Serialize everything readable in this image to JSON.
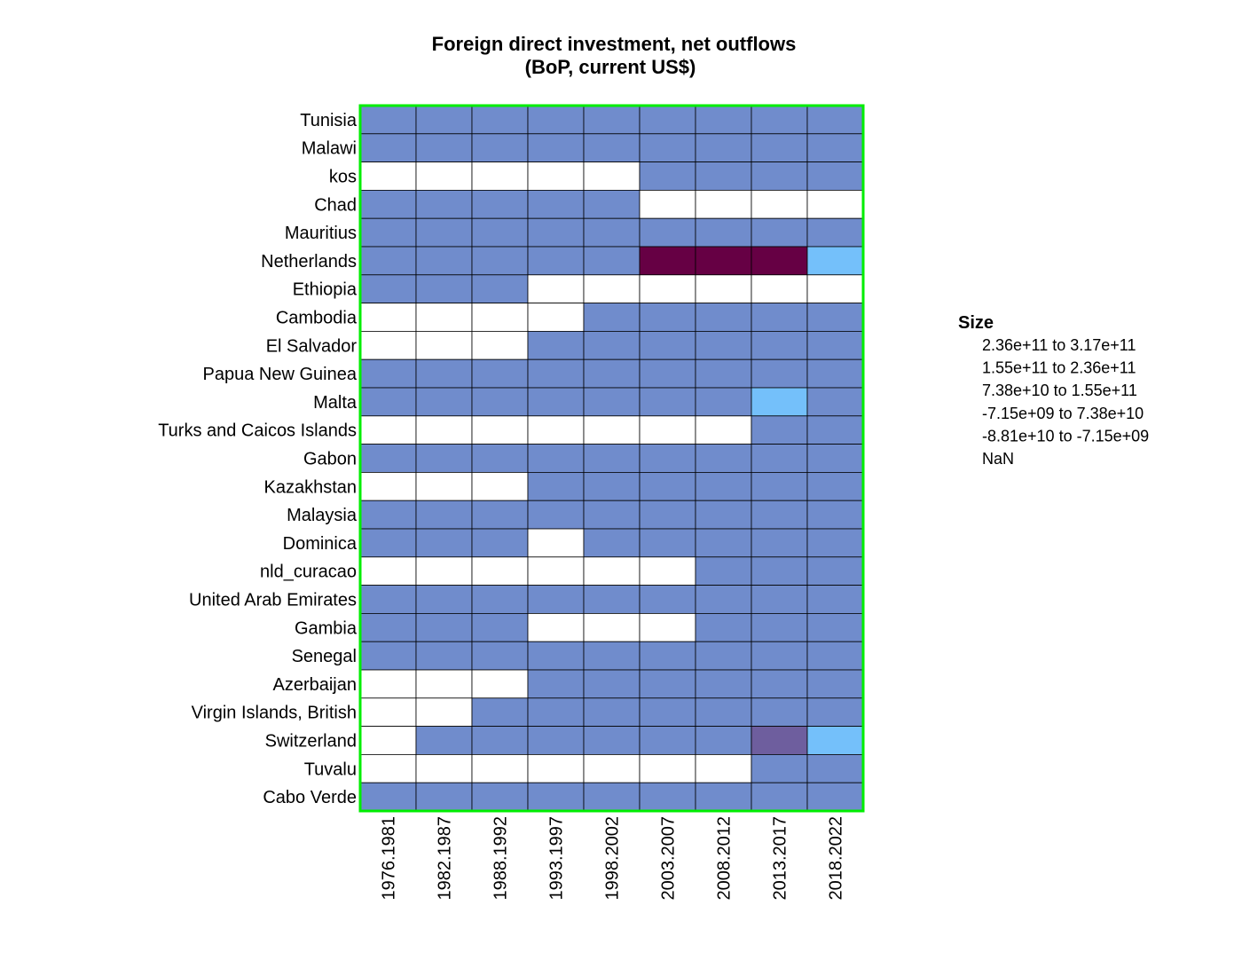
{
  "chart_data": {
    "type": "heatmap",
    "title": [
      "Foreign direct investment, net outflows",
      "(BoP, current US$)"
    ],
    "columns": [
      "1976.1981",
      "1982.1987",
      "1988.1992",
      "1993.1997",
      "1998.2002",
      "2003.2007",
      "2008.2012",
      "2013.2017",
      "2018.2022"
    ],
    "rows": [
      "Tunisia",
      "Malawi",
      "kos",
      "Chad",
      "Mauritius",
      "Netherlands",
      "Ethiopia",
      "Cambodia",
      "El Salvador",
      "Papua New Guinea",
      "Malta",
      "Turks and Caicos Islands",
      "Gabon",
      "Kazakhstan",
      "Malaysia",
      "Dominica",
      "nld_curacao",
      "United Arab Emirates",
      "Gambia",
      "Senegal",
      "Azerbaijan",
      "Virgin Islands, British",
      "Switzerland",
      "Tuvalu",
      "Cabo Verde"
    ],
    "legend": {
      "title": "Size",
      "placement": "right",
      "bins": [
        {
          "from": "2.36e+11",
          "to": "3.17e+11",
          "color": "#660044"
        },
        {
          "from": "1.55e+11",
          "to": "2.36e+11",
          "color": "#6e5e9e"
        },
        {
          "from": "7.38e+10",
          "to": "1.55e+11",
          "color": "#74c0fa"
        },
        {
          "from": "-7.15e+09",
          "to": "7.38e+10",
          "color": "#708ccc"
        },
        {
          "from": "-8.81e+10",
          "to": "-7.15e+09",
          "color": "#b0d0f0"
        },
        {
          "label": "NaN",
          "color": "#ffffff"
        }
      ]
    },
    "bin_index": [
      [
        3,
        3,
        3,
        3,
        3,
        3,
        3,
        3,
        3
      ],
      [
        3,
        3,
        3,
        3,
        3,
        3,
        3,
        3,
        3
      ],
      [
        5,
        5,
        5,
        5,
        5,
        3,
        3,
        3,
        3
      ],
      [
        3,
        3,
        3,
        3,
        3,
        5,
        5,
        5,
        5
      ],
      [
        3,
        3,
        3,
        3,
        3,
        3,
        3,
        3,
        3
      ],
      [
        3,
        3,
        3,
        3,
        3,
        0,
        0,
        0,
        2
      ],
      [
        3,
        3,
        3,
        5,
        5,
        5,
        5,
        5,
        5
      ],
      [
        5,
        5,
        5,
        5,
        3,
        3,
        3,
        3,
        3
      ],
      [
        5,
        5,
        5,
        3,
        3,
        3,
        3,
        3,
        3
      ],
      [
        3,
        3,
        3,
        3,
        3,
        3,
        3,
        3,
        3
      ],
      [
        3,
        3,
        3,
        3,
        3,
        3,
        3,
        2,
        3
      ],
      [
        5,
        5,
        5,
        5,
        5,
        5,
        5,
        3,
        3
      ],
      [
        3,
        3,
        3,
        3,
        3,
        3,
        3,
        3,
        3
      ],
      [
        5,
        5,
        5,
        3,
        3,
        3,
        3,
        3,
        3
      ],
      [
        3,
        3,
        3,
        3,
        3,
        3,
        3,
        3,
        3
      ],
      [
        3,
        3,
        3,
        5,
        3,
        3,
        3,
        3,
        3
      ],
      [
        5,
        5,
        5,
        5,
        5,
        5,
        3,
        3,
        3
      ],
      [
        3,
        3,
        3,
        3,
        3,
        3,
        3,
        3,
        3
      ],
      [
        3,
        3,
        3,
        5,
        5,
        5,
        3,
        3,
        3
      ],
      [
        3,
        3,
        3,
        3,
        3,
        3,
        3,
        3,
        3
      ],
      [
        5,
        5,
        5,
        3,
        3,
        3,
        3,
        3,
        3
      ],
      [
        5,
        5,
        3,
        3,
        3,
        3,
        3,
        3,
        3
      ],
      [
        5,
        3,
        3,
        3,
        3,
        3,
        3,
        1,
        2
      ],
      [
        5,
        5,
        5,
        5,
        5,
        5,
        5,
        3,
        3
      ],
      [
        3,
        3,
        3,
        3,
        3,
        3,
        3,
        3,
        3
      ]
    ],
    "frame_color": "#00ee00",
    "cell_border_color": "#000000"
  }
}
